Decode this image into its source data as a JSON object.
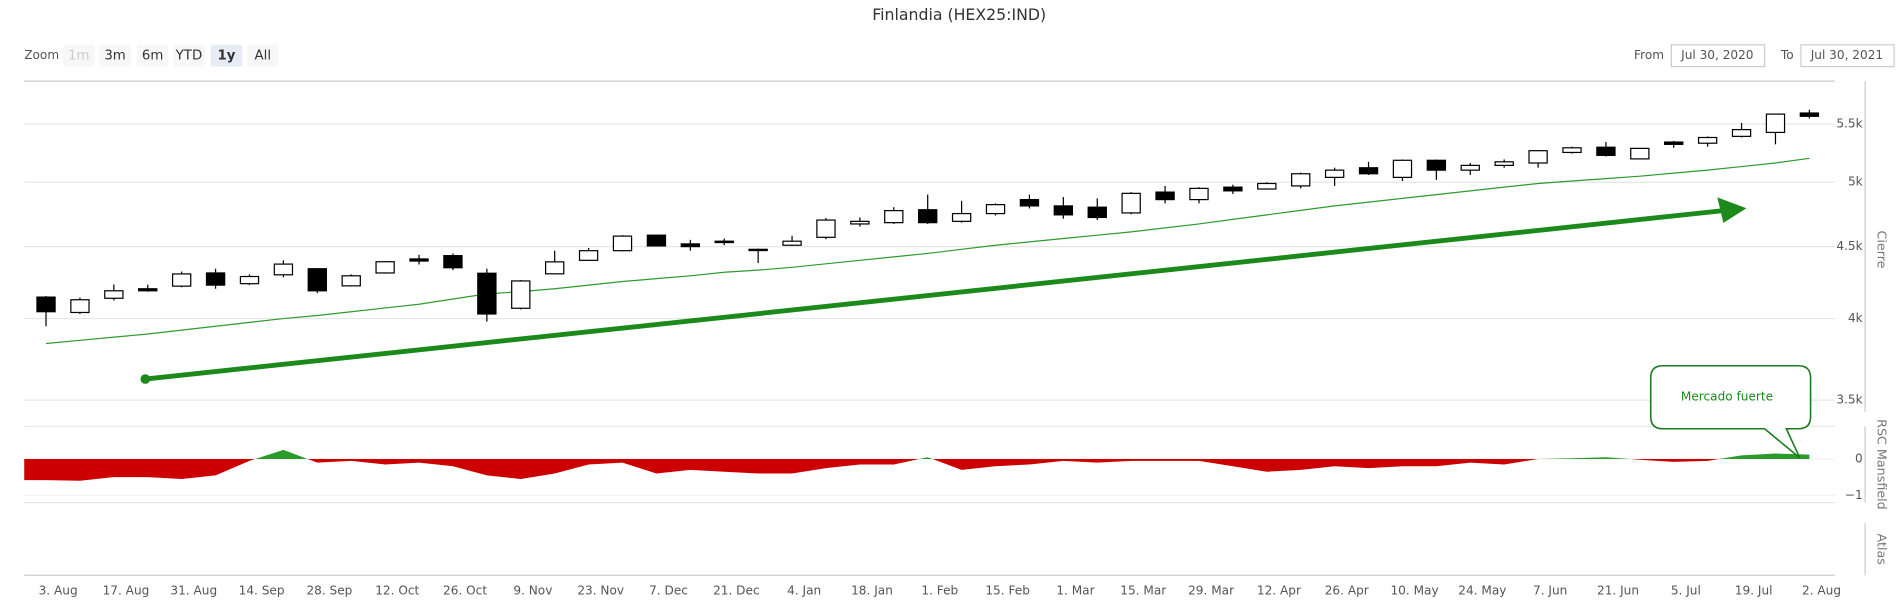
{
  "title": "Finlandia (HEX25:IND)",
  "range_selector": {
    "label": "Zoom",
    "buttons": [
      "1m",
      "3m",
      "6m",
      "YTD",
      "1y",
      "All"
    ],
    "selected": 4,
    "disabled": [
      0
    ]
  },
  "date_range": {
    "from_label": "From",
    "from": "Jul 30, 2020",
    "to_label": "To",
    "to": "Jul 30, 2021"
  },
  "chart_data": [
    {
      "type": "candlestick",
      "ylabel": "Cierre",
      "log_scale": true,
      "grid": true,
      "up_color": "#ffffff",
      "down_color": "#000000",
      "categories": [
        "3. Aug",
        null,
        "17. Aug",
        null,
        "31. Aug",
        null,
        "14. Sep",
        null,
        "28. Sep",
        null,
        "12. Oct",
        null,
        "26. Oct",
        null,
        "9. Nov",
        null,
        "23. Nov",
        null,
        "7. Dec",
        null,
        "21. Dec",
        null,
        "4. Jan",
        null,
        "18. Jan",
        null,
        "1. Feb",
        null,
        "15. Feb",
        null,
        "1. Mar",
        null,
        "15. Mar",
        null,
        "29. Mar",
        null,
        "12. Apr",
        null,
        "26. Apr",
        null,
        "10. May",
        null,
        "24. May",
        null,
        "7. Jun",
        null,
        "21. Jun",
        null,
        "5. Jul",
        null,
        "19. Jul",
        null,
        "2. Aug"
      ],
      "open": [
        4143,
        4040,
        4135,
        4200,
        4218,
        4310,
        4235,
        4297,
        4340,
        4220,
        4310,
        4410,
        4434,
        4308,
        4068,
        4304,
        4400,
        4470,
        4585,
        4520,
        4540,
        4480,
        4510,
        4569,
        4670,
        4680,
        4780,
        4690,
        4750,
        4860,
        4810,
        4800,
        4755,
        4920,
        4860,
        4960,
        4945,
        4970,
        5040,
        5120,
        5040,
        5183,
        5100,
        5140,
        5160,
        5250,
        5295,
        5195,
        5340,
        5330,
        5390,
        5425,
        5600
      ],
      "high": [
        4150,
        4140,
        4230,
        4228,
        4320,
        4340,
        4300,
        4400,
        4345,
        4300,
        4395,
        4440,
        4450,
        4340,
        4260,
        4470,
        4490,
        4585,
        4590,
        4550,
        4560,
        4485,
        4580,
        4715,
        4720,
        4800,
        4900,
        4850,
        4830,
        4900,
        4880,
        4870,
        4920,
        4970,
        4960,
        4980,
        5000,
        5080,
        5120,
        5170,
        5190,
        5190,
        5160,
        5190,
        5270,
        5300,
        5340,
        5290,
        5350,
        5390,
        5510,
        5595,
        5630
      ],
      "low": [
        3950,
        4030,
        4120,
        4180,
        4210,
        4200,
        4225,
        4280,
        4170,
        4215,
        4305,
        4370,
        4330,
        3980,
        4060,
        4300,
        4395,
        4465,
        4500,
        4470,
        4510,
        4380,
        4505,
        4555,
        4650,
        4670,
        4670,
        4680,
        4735,
        4790,
        4710,
        4700,
        4745,
        4830,
        4830,
        4905,
        4940,
        4950,
        4970,
        5060,
        5010,
        5020,
        5060,
        5120,
        5120,
        5240,
        5215,
        5190,
        5290,
        5300,
        5380,
        5320,
        5550
      ],
      "close": [
        4045,
        4125,
        4186,
        4186,
        4303,
        4225,
        4285,
        4373,
        4186,
        4290,
        4390,
        4395,
        4347,
        4030,
        4254,
        4389,
        4470,
        4578,
        4505,
        4500,
        4530,
        4475,
        4540,
        4700,
        4690,
        4773,
        4680,
        4750,
        4820,
        4810,
        4740,
        4720,
        4910,
        4860,
        4950,
        4930,
        4990,
        5070,
        5100,
        5070,
        5183,
        5100,
        5140,
        5170,
        5265,
        5290,
        5225,
        5285,
        5320,
        5380,
        5450,
        5590,
        5570
      ],
      "lines": [
        {
          "color": "#2e9b2e",
          "values": [
            3840,
            3860,
            3880,
            3900,
            3925,
            3950,
            3975,
            4000,
            4020,
            4045,
            4070,
            4095,
            4130,
            4165,
            4180,
            4200,
            4225,
            4250,
            4270,
            4290,
            4315,
            4330,
            4350,
            4375,
            4400,
            4425,
            4450,
            4480,
            4510,
            4535,
            4560,
            4585,
            4610,
            4640,
            4670,
            4705,
            4740,
            4775,
            4810,
            4840,
            4870,
            4900,
            4930,
            4960,
            4990,
            5010,
            5030,
            5050,
            5075,
            5100,
            5130,
            5160,
            5200
          ]
        }
      ],
      "ylim": [
        3400,
        5900
      ],
      "yticks": [
        {
          "value": 3500,
          "label": "3.5k"
        },
        {
          "value": 4000,
          "label": "4k"
        },
        {
          "value": 4500,
          "label": "4.5k"
        },
        {
          "value": 5000,
          "label": "5k"
        },
        {
          "value": 5500,
          "label": "5.5k"
        }
      ]
    },
    {
      "type": "area",
      "ylabel": "RSC Mansfield",
      "positive_color": "#2a9a2a",
      "negative_color": "#cc0000",
      "values": [
        -0.58,
        -0.6,
        -0.5,
        -0.5,
        -0.55,
        -0.45,
        -0.05,
        0.25,
        -0.1,
        -0.05,
        -0.15,
        -0.1,
        -0.2,
        -0.45,
        -0.55,
        -0.4,
        -0.15,
        -0.1,
        -0.4,
        -0.3,
        -0.35,
        -0.4,
        -0.4,
        -0.25,
        -0.15,
        -0.15,
        0.05,
        -0.3,
        -0.2,
        -0.15,
        -0.05,
        -0.1,
        -0.05,
        -0.05,
        -0.05,
        -0.2,
        -0.35,
        -0.3,
        -0.2,
        -0.25,
        -0.2,
        -0.2,
        -0.1,
        -0.15,
        0,
        0.02,
        0.05,
        -0.02,
        -0.08,
        -0.05,
        0.1,
        0.15,
        0.12
      ],
      "ylim": [
        -1.2,
        0.9
      ],
      "yticks": [
        {
          "value": -1,
          "label": "−1"
        },
        0
      ],
      "annotation": "Mercado fuerte"
    },
    {
      "type": "empty",
      "ylabel": "Atlas"
    }
  ]
}
